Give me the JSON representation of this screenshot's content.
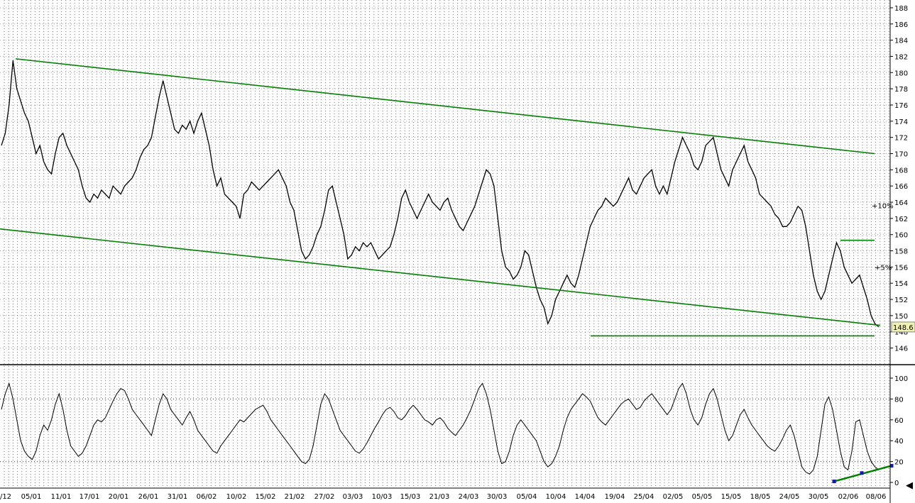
{
  "colors": {
    "background": "#ffffff",
    "price_line": "#000000",
    "trendline": "#008000",
    "marker": "#1a1aa6",
    "badge_fill": "#f2f2b0",
    "grid": "#000000"
  },
  "chart_data": [
    {
      "type": "line",
      "panel": "price",
      "title": "",
      "xlabel": "",
      "ylabel": "",
      "ylim": [
        144,
        190
      ],
      "y_ticks": [
        146,
        148,
        150,
        152,
        154,
        156,
        158,
        160,
        162,
        164,
        166,
        168,
        170,
        172,
        174,
        176,
        178,
        180,
        182,
        184,
        186,
        188
      ],
      "last_price_label": "148.6",
      "grid": true,
      "series": [
        {
          "values": [
            171,
            172.5,
            176,
            181.5,
            178,
            176.5,
            175,
            174,
            172,
            170,
            171,
            169,
            168,
            167.5,
            170,
            172,
            172.5,
            171,
            170,
            169,
            168,
            166,
            164.5,
            164,
            165,
            164.5,
            165.5,
            165,
            164.5,
            166,
            165.5,
            165,
            166,
            166.5,
            167,
            168,
            169.5,
            170.5,
            171,
            172,
            174.5,
            177,
            179,
            177,
            175,
            173,
            172.5,
            173.5,
            173,
            174,
            172.5,
            174,
            175,
            173,
            171,
            168,
            166,
            167,
            165,
            164.5,
            164,
            163.5,
            162,
            165,
            165.5,
            166.5,
            166,
            165.5,
            166,
            166.5,
            167,
            167.5,
            168,
            167,
            166,
            164,
            163,
            160.5,
            158,
            157,
            157.5,
            158.5,
            160,
            161,
            163,
            165.5,
            166,
            164,
            162,
            160,
            157,
            157.5,
            158.5,
            158,
            159,
            158.5,
            159,
            158,
            157,
            157.5,
            158,
            158.5,
            160,
            162,
            164.5,
            165.5,
            164,
            163,
            162,
            163,
            164,
            165,
            164,
            163.5,
            163,
            164,
            164.5,
            163,
            162,
            161,
            160.5,
            161.5,
            162.5,
            163.5,
            165,
            166.5,
            168,
            167.5,
            166,
            162,
            158,
            156,
            155.5,
            154.5,
            155,
            156,
            158,
            157.5,
            155.5,
            153.5,
            152,
            151,
            149,
            150,
            152,
            153,
            154,
            155,
            154,
            153.5,
            155,
            157,
            159,
            161,
            162,
            163,
            163.5,
            164.5,
            164,
            163.5,
            164,
            165,
            166,
            167,
            165.5,
            165,
            166,
            167,
            167.5,
            168,
            166,
            165,
            166,
            165,
            167,
            169,
            170.5,
            172,
            171,
            170,
            168.5,
            168,
            169,
            171,
            171.5,
            172,
            170,
            168,
            167,
            166,
            168,
            169,
            170,
            171,
            169,
            168,
            167,
            165,
            164.5,
            164,
            163.5,
            162.5,
            162,
            161,
            161,
            161.5,
            162.5,
            163.5,
            163,
            161,
            158,
            155,
            153,
            152,
            153,
            155,
            157,
            159,
            158,
            156,
            155,
            154,
            154.5,
            155,
            153.5,
            152,
            150,
            149,
            148.6
          ]
        }
      ],
      "annotations": [
        "+10%",
        "+5%"
      ]
    },
    {
      "type": "line",
      "panel": "oscillator",
      "title": "",
      "ylim": [
        -5,
        105
      ],
      "y_ticks": [
        0,
        20,
        40,
        60,
        80,
        100
      ],
      "reference_lines": [
        20,
        80
      ],
      "grid": true,
      "series": [
        {
          "values": [
            70,
            85,
            95,
            80,
            60,
            40,
            30,
            25,
            22,
            30,
            45,
            55,
            50,
            60,
            75,
            85,
            70,
            50,
            35,
            30,
            25,
            28,
            35,
            45,
            55,
            60,
            58,
            62,
            70,
            78,
            85,
            90,
            88,
            80,
            70,
            65,
            60,
            55,
            50,
            45,
            60,
            75,
            85,
            80,
            70,
            65,
            60,
            55,
            62,
            68,
            60,
            50,
            45,
            40,
            35,
            30,
            28,
            35,
            40,
            45,
            50,
            55,
            60,
            58,
            62,
            66,
            70,
            72,
            74,
            68,
            60,
            55,
            50,
            45,
            40,
            35,
            30,
            25,
            20,
            18,
            22,
            35,
            55,
            75,
            85,
            80,
            70,
            60,
            50,
            45,
            40,
            35,
            30,
            28,
            32,
            38,
            45,
            52,
            58,
            65,
            70,
            72,
            68,
            62,
            60,
            64,
            70,
            74,
            70,
            65,
            60,
            58,
            55,
            60,
            62,
            58,
            52,
            48,
            45,
            50,
            55,
            62,
            70,
            80,
            90,
            95,
            85,
            70,
            50,
            30,
            18,
            20,
            30,
            45,
            55,
            60,
            55,
            50,
            45,
            40,
            30,
            20,
            15,
            18,
            25,
            35,
            50,
            62,
            70,
            75,
            80,
            85,
            82,
            78,
            70,
            62,
            58,
            55,
            60,
            65,
            70,
            75,
            78,
            80,
            75,
            70,
            72,
            78,
            82,
            85,
            80,
            75,
            70,
            65,
            70,
            80,
            90,
            95,
            85,
            70,
            60,
            55,
            62,
            75,
            85,
            90,
            80,
            65,
            50,
            40,
            45,
            55,
            65,
            70,
            62,
            55,
            50,
            45,
            40,
            35,
            32,
            30,
            35,
            42,
            50,
            55,
            45,
            30,
            15,
            10,
            8,
            12,
            25,
            50,
            75,
            82,
            70,
            50,
            30,
            15,
            12,
            30,
            58,
            60,
            45,
            30,
            20,
            15,
            12
          ]
        }
      ]
    }
  ],
  "x_axis": {
    "labels": [
      "/12",
      "05/01",
      "11/01",
      "17/01",
      "20/01",
      "26/01",
      "31/01",
      "06/02",
      "10/02",
      "15/02",
      "21/02",
      "27/02",
      "03/03",
      "10/03",
      "15/03",
      "21/03",
      "24/03",
      "30/03",
      "05/04",
      "10/04",
      "14/04",
      "19/04",
      "25/04",
      "02/05",
      "05/05",
      "15/05",
      "18/05",
      "24/05",
      "30/05",
      "02/06",
      "08/06"
    ]
  },
  "scroll_arrow": "◀"
}
